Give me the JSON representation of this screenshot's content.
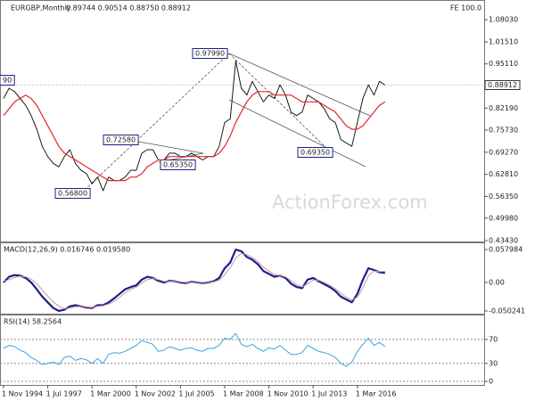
{
  "chart_data": [
    {
      "type": "line",
      "title": "EURGBP,Monthly",
      "subtitle": "0.89744 0.90514 0.88750 0.88912",
      "corner_label": "FE 100.0",
      "watermark": "ActionForex.com",
      "ylim": [
        0.429,
        1.125
      ],
      "yticks": [
        {
          "value": 1.0803,
          "label": "1.08030"
        },
        {
          "value": 1.0151,
          "label": "1.01510"
        },
        {
          "value": 0.9511,
          "label": "0.95110"
        },
        {
          "value": 0.8819,
          "label": "0.88190"
        },
        {
          "value": 0.8219,
          "label": "0.82190"
        },
        {
          "value": 0.7573,
          "label": "0.75730"
        },
        {
          "value": 0.6927,
          "label": "0.69270"
        },
        {
          "value": 0.6281,
          "label": "0.62810"
        },
        {
          "value": 0.5635,
          "label": "0.56350"
        },
        {
          "value": 0.4998,
          "label": "0.49980"
        },
        {
          "value": 0.4343,
          "label": "0.43430"
        }
      ],
      "last_price": {
        "value": 0.88912,
        "label": "0.88912"
      },
      "annotations": [
        "0.97990",
        "0.72580",
        "0.65350",
        "0.56800",
        "0.69350",
        "90"
      ],
      "grid": false,
      "series": [
        {
          "color": "#1a1a1a",
          "line_width": 1,
          "values": [
            0.85,
            0.88,
            0.87,
            0.85,
            0.83,
            0.8,
            0.76,
            0.71,
            0.68,
            0.66,
            0.65,
            0.68,
            0.7,
            0.66,
            0.64,
            0.63,
            0.6,
            0.62,
            0.58,
            0.62,
            0.61,
            0.61,
            0.62,
            0.64,
            0.64,
            0.69,
            0.7,
            0.7,
            0.67,
            0.67,
            0.69,
            0.69,
            0.68,
            0.68,
            0.69,
            0.68,
            0.67,
            0.68,
            0.68,
            0.71,
            0.78,
            0.79,
            0.96,
            0.88,
            0.86,
            0.9,
            0.87,
            0.84,
            0.86,
            0.85,
            0.89,
            0.86,
            0.81,
            0.8,
            0.81,
            0.86,
            0.85,
            0.84,
            0.82,
            0.79,
            0.78,
            0.73,
            0.72,
            0.71,
            0.78,
            0.85,
            0.89,
            0.86,
            0.9,
            0.889
          ]
        },
        {
          "color": "#e8222a",
          "line_width": 1.2,
          "values": [
            0.8,
            0.82,
            0.84,
            0.85,
            0.86,
            0.85,
            0.83,
            0.8,
            0.77,
            0.74,
            0.71,
            0.69,
            0.68,
            0.67,
            0.66,
            0.65,
            0.64,
            0.63,
            0.62,
            0.61,
            0.61,
            0.61,
            0.61,
            0.62,
            0.62,
            0.63,
            0.65,
            0.66,
            0.67,
            0.67,
            0.68,
            0.68,
            0.68,
            0.68,
            0.68,
            0.68,
            0.68,
            0.68,
            0.68,
            0.69,
            0.71,
            0.74,
            0.78,
            0.81,
            0.84,
            0.86,
            0.87,
            0.87,
            0.87,
            0.86,
            0.86,
            0.86,
            0.86,
            0.85,
            0.84,
            0.84,
            0.84,
            0.84,
            0.83,
            0.82,
            0.81,
            0.79,
            0.77,
            0.76,
            0.76,
            0.77,
            0.79,
            0.81,
            0.83,
            0.84
          ]
        }
      ]
    },
    {
      "type": "line",
      "title": "MACD(12,26,9) 0.016746 0.019580",
      "ylim": [
        -0.0565,
        0.069
      ],
      "yticks": [
        0.057984,
        {
          "value": 0,
          "label": "0.00"
        },
        -0.050241
      ],
      "grid": false,
      "series": [
        {
          "color": "#1c1f8c",
          "line_width": 2.2,
          "values": [
            0.0,
            0.01,
            0.013,
            0.012,
            0.008,
            0.0,
            -0.012,
            -0.025,
            -0.035,
            -0.045,
            -0.05,
            -0.048,
            -0.042,
            -0.04,
            -0.042,
            -0.044,
            -0.045,
            -0.04,
            -0.04,
            -0.035,
            -0.028,
            -0.02,
            -0.012,
            -0.008,
            -0.005,
            0.005,
            0.01,
            0.008,
            0.003,
            0.0,
            0.003,
            0.002,
            0.0,
            -0.001,
            0.001,
            0.0,
            -0.001,
            0.0,
            0.002,
            0.008,
            0.025,
            0.035,
            0.058,
            0.055,
            0.045,
            0.04,
            0.032,
            0.02,
            0.015,
            0.01,
            0.012,
            0.008,
            -0.002,
            -0.008,
            -0.01,
            0.005,
            0.008,
            0.002,
            -0.003,
            -0.008,
            -0.015,
            -0.025,
            -0.03,
            -0.035,
            -0.02,
            0.005,
            0.025,
            0.022,
            0.018,
            0.0167
          ]
        },
        {
          "color": "#d88f9b",
          "line_width": 1,
          "values": [
            0.002,
            0.005,
            0.009,
            0.011,
            0.01,
            0.006,
            -0.002,
            -0.013,
            -0.024,
            -0.034,
            -0.042,
            -0.046,
            -0.045,
            -0.043,
            -0.042,
            -0.043,
            -0.044,
            -0.042,
            -0.041,
            -0.038,
            -0.033,
            -0.026,
            -0.018,
            -0.012,
            -0.008,
            -0.001,
            0.005,
            0.007,
            0.005,
            0.002,
            0.002,
            0.002,
            0.001,
            0.0,
            0.0,
            0.0,
            0.0,
            0.0,
            0.001,
            0.004,
            0.014,
            0.026,
            0.043,
            0.051,
            0.049,
            0.044,
            0.037,
            0.027,
            0.02,
            0.014,
            0.012,
            0.01,
            0.003,
            -0.004,
            -0.008,
            -0.002,
            0.004,
            0.004,
            0.0,
            -0.005,
            -0.011,
            -0.019,
            -0.026,
            -0.031,
            -0.026,
            -0.01,
            0.012,
            0.02,
            0.019,
            0.0196
          ]
        }
      ]
    },
    {
      "type": "line",
      "title": "RSI(14) 58.2564",
      "ylim": [
        -6,
        110
      ],
      "yticks": [
        70,
        30,
        0
      ],
      "grid": true,
      "categories": [
        "1 Nov 1994",
        null,
        null,
        null,
        null,
        null,
        null,
        null,
        "1 Jul 1997",
        null,
        null,
        null,
        null,
        null,
        null,
        null,
        "1 Mar 2000",
        null,
        null,
        null,
        null,
        null,
        null,
        null,
        "1 Nov 2002",
        null,
        null,
        null,
        null,
        null,
        null,
        null,
        "1 Jul 2005",
        null,
        null,
        null,
        null,
        null,
        null,
        null,
        "1 Mar 2008",
        null,
        null,
        null,
        null,
        null,
        null,
        null,
        "1 Nov 2010",
        null,
        null,
        null,
        null,
        null,
        null,
        null,
        "1 Jul 2013",
        null,
        null,
        null,
        null,
        null,
        null,
        null,
        "1 Mar 2016",
        null,
        null,
        null,
        null,
        null
      ],
      "series": [
        {
          "color": "#3ba3e6",
          "line_width": 1,
          "values": [
            55,
            60,
            58,
            52,
            48,
            40,
            35,
            28,
            30,
            32,
            28,
            40,
            42,
            35,
            38,
            36,
            30,
            38,
            30,
            45,
            48,
            47,
            50,
            55,
            60,
            68,
            65,
            62,
            50,
            52,
            58,
            55,
            52,
            55,
            56,
            52,
            50,
            55,
            55,
            60,
            72,
            70,
            80,
            62,
            58,
            62,
            55,
            50,
            56,
            54,
            60,
            52,
            45,
            45,
            48,
            60,
            55,
            50,
            48,
            45,
            40,
            30,
            25,
            32,
            50,
            62,
            72,
            60,
            65,
            58.2564
          ]
        }
      ]
    }
  ]
}
